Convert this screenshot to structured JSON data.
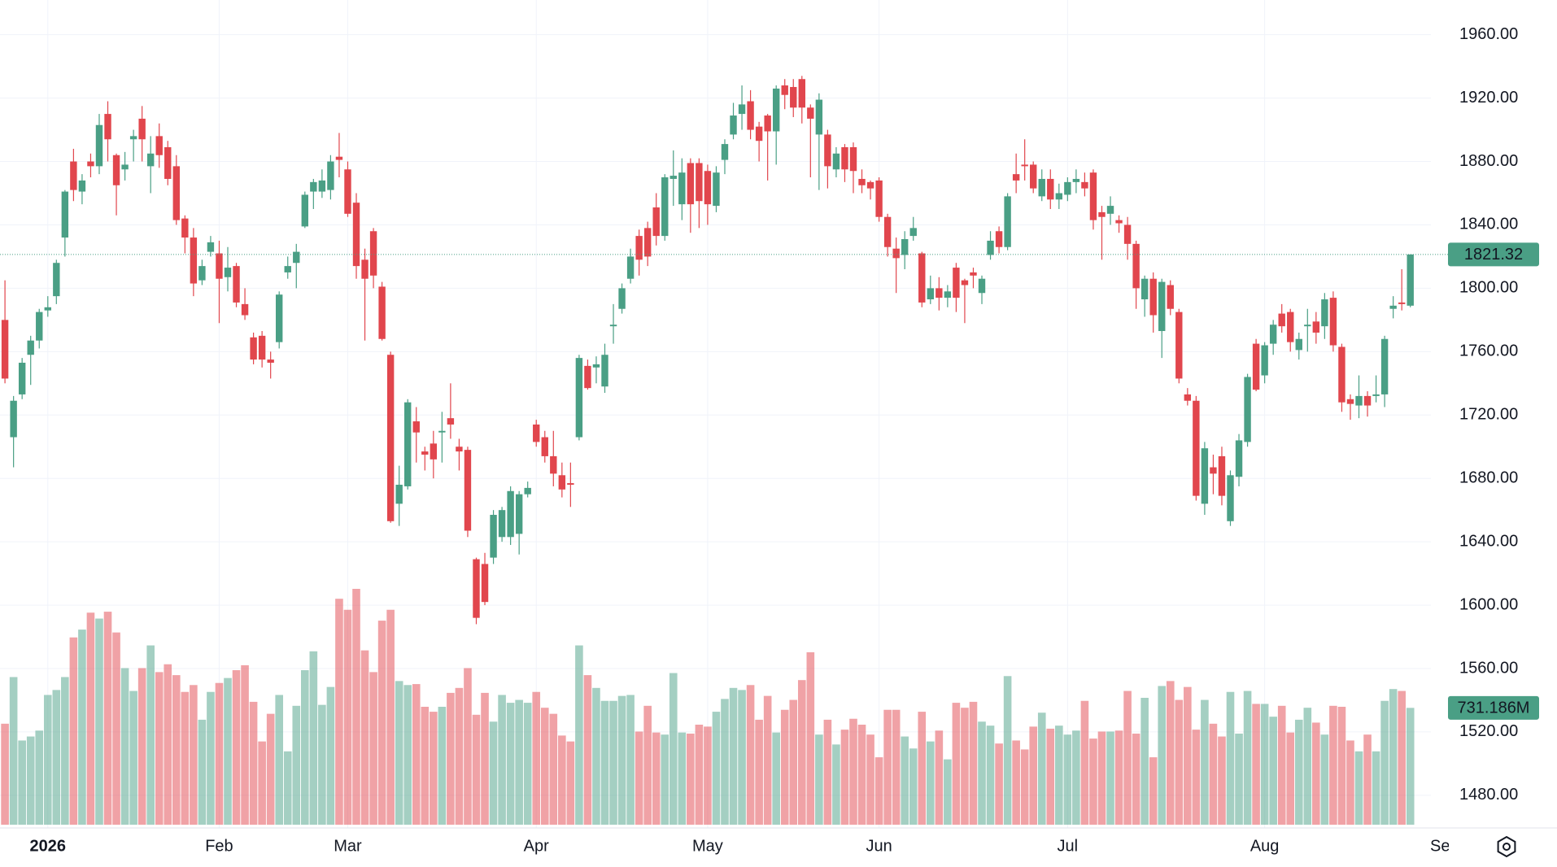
{
  "chart_data": {
    "type": "candlestick",
    "open": [
      1780,
      1706,
      1733,
      1758,
      1767,
      1786,
      1795,
      1832,
      1880,
      1861,
      1880,
      1877,
      1910,
      1884,
      1875,
      1894,
      1907,
      1877,
      1896,
      1889,
      1877,
      1844,
      1832,
      1805,
      1823,
      1822,
      1807,
      1814,
      1790,
      1769,
      1770,
      1755,
      1766,
      1810,
      1816,
      1839,
      1861,
      1861,
      1862,
      1883,
      1875,
      1854,
      1818,
      1836,
      1801,
      1758,
      1664,
      1675,
      1716,
      1697,
      1702,
      1709,
      1718,
      1700,
      1698,
      1629,
      1626,
      1630,
      1643,
      1643,
      1645,
      1670,
      1714,
      1706,
      1694,
      1682,
      1677,
      1706,
      1751,
      1750,
      1738,
      1776,
      1787,
      1806,
      1833,
      1838,
      1851,
      1833,
      1869,
      1853,
      1879,
      1879,
      1874,
      1852,
      1881,
      1897,
      1910,
      1918,
      1902,
      1909,
      1899,
      1928,
      1927,
      1932,
      1914,
      1897,
      1897,
      1875,
      1889,
      1889,
      1869,
      1867,
      1868,
      1845,
      1825,
      1821,
      1833,
      1822,
      1793,
      1800,
      1794,
      1813,
      1805,
      1810,
      1797,
      1821,
      1836,
      1826,
      1872,
      1878,
      1878,
      1858,
      1869,
      1856,
      1859,
      1867,
      1867,
      1873,
      1848,
      1847,
      1843,
      1840,
      1828,
      1793,
      1806,
      1773,
      1802,
      1785,
      1733,
      1729,
      1664,
      1687,
      1694,
      1653,
      1681,
      1703,
      1765,
      1745,
      1765,
      1784,
      1785,
      1761,
      1776,
      1779,
      1776,
      1794,
      1763,
      1730,
      1726,
      1732,
      1732,
      1733,
      1787,
      1791,
      1789
    ],
    "high": [
      1805,
      1732,
      1756,
      1770,
      1787,
      1795,
      1818,
      1862,
      1888,
      1872,
      1885,
      1910,
      1918,
      1885,
      1886,
      1900,
      1915,
      1896,
      1904,
      1893,
      1884,
      1846,
      1838,
      1818,
      1833,
      1830,
      1826,
      1816,
      1800,
      1772,
      1773,
      1760,
      1798,
      1820,
      1828,
      1861,
      1869,
      1875,
      1884,
      1898,
      1880,
      1860,
      1825,
      1838,
      1804,
      1760,
      1688,
      1730,
      1725,
      1700,
      1710,
      1722,
      1740,
      1705,
      1700,
      1630,
      1633,
      1660,
      1662,
      1675,
      1672,
      1678,
      1717,
      1710,
      1710,
      1690,
      1690,
      1758,
      1755,
      1757,
      1765,
      1790,
      1803,
      1825,
      1837,
      1842,
      1860,
      1872,
      1887,
      1882,
      1882,
      1882,
      1878,
      1877,
      1894,
      1917,
      1928,
      1925,
      1905,
      1910,
      1928,
      1932,
      1932,
      1934,
      1916,
      1923,
      1900,
      1889,
      1891,
      1892,
      1875,
      1868,
      1870,
      1847,
      1832,
      1836,
      1845,
      1823,
      1808,
      1807,
      1802,
      1816,
      1806,
      1813,
      1808,
      1836,
      1839,
      1860,
      1885,
      1894,
      1880,
      1875,
      1875,
      1866,
      1870,
      1875,
      1873,
      1875,
      1852,
      1858,
      1846,
      1845,
      1830,
      1808,
      1810,
      1806,
      1805,
      1787,
      1737,
      1732,
      1703,
      1695,
      1700,
      1685,
      1708,
      1746,
      1768,
      1766,
      1780,
      1790,
      1787,
      1772,
      1787,
      1785,
      1797,
      1798,
      1765,
      1733,
      1745,
      1735,
      1745,
      1770,
      1795,
      1812,
      1821.32
    ],
    "low": [
      1740,
      1687,
      1730,
      1739,
      1762,
      1782,
      1790,
      1820,
      1855,
      1853,
      1870,
      1872,
      1880,
      1846,
      1868,
      1880,
      1880,
      1860,
      1876,
      1865,
      1840,
      1822,
      1795,
      1802,
      1820,
      1778,
      1798,
      1788,
      1780,
      1752,
      1750,
      1743,
      1762,
      1806,
      1800,
      1838,
      1850,
      1857,
      1856,
      1870,
      1845,
      1806,
      1767,
      1800,
      1767,
      1652,
      1650,
      1673,
      1690,
      1685,
      1680,
      1690,
      1705,
      1685,
      1643,
      1588,
      1600,
      1626,
      1640,
      1638,
      1632,
      1668,
      1700,
      1690,
      1675,
      1668,
      1662,
      1704,
      1736,
      1740,
      1734,
      1765,
      1784,
      1803,
      1808,
      1814,
      1827,
      1830,
      1852,
      1843,
      1835,
      1838,
      1840,
      1848,
      1872,
      1894,
      1900,
      1894,
      1880,
      1868,
      1878,
      1913,
      1908,
      1904,
      1870,
      1862,
      1863,
      1870,
      1867,
      1860,
      1860,
      1856,
      1842,
      1820,
      1797,
      1812,
      1830,
      1788,
      1790,
      1786,
      1788,
      1785,
      1778,
      1800,
      1790,
      1818,
      1822,
      1824,
      1860,
      1868,
      1860,
      1855,
      1850,
      1850,
      1855,
      1860,
      1858,
      1837,
      1818,
      1840,
      1835,
      1818,
      1787,
      1782,
      1772,
      1756,
      1783,
      1740,
      1726,
      1666,
      1657,
      1670,
      1663,
      1650,
      1675,
      1700,
      1735,
      1740,
      1758,
      1772,
      1760,
      1755,
      1760,
      1765,
      1768,
      1760,
      1722,
      1717,
      1718,
      1719,
      1728,
      1725,
      1781,
      1786,
      1788
    ],
    "close": [
      1743,
      1729,
      1753,
      1767,
      1785,
      1788,
      1816,
      1861,
      1862,
      1868,
      1877,
      1903,
      1894,
      1865,
      1878,
      1896,
      1894,
      1885,
      1884,
      1869,
      1843,
      1832,
      1803,
      1814,
      1829,
      1806,
      1813,
      1791,
      1783,
      1755,
      1755,
      1753,
      1796,
      1814,
      1823,
      1859,
      1867,
      1868,
      1880,
      1881,
      1847,
      1814,
      1806,
      1808,
      1768,
      1653,
      1676,
      1728,
      1709,
      1695,
      1692,
      1710,
      1714,
      1697,
      1647,
      1592,
      1602,
      1657,
      1660,
      1672,
      1670,
      1674,
      1703,
      1694,
      1683,
      1673,
      1676,
      1756,
      1737,
      1752,
      1758,
      1777,
      1800,
      1820,
      1818,
      1820,
      1833,
      1870,
      1871,
      1873,
      1853,
      1855,
      1853,
      1873,
      1891,
      1909,
      1916,
      1900,
      1893,
      1899,
      1926,
      1922,
      1914,
      1914,
      1907,
      1919,
      1877,
      1885,
      1875,
      1874,
      1865,
      1863,
      1845,
      1826,
      1819,
      1831,
      1838,
      1791,
      1800,
      1794,
      1798,
      1794,
      1802,
      1808,
      1806,
      1830,
      1826,
      1858,
      1868,
      1877,
      1863,
      1869,
      1856,
      1860,
      1867,
      1869,
      1863,
      1843,
      1845,
      1852,
      1841,
      1828,
      1800,
      1806,
      1783,
      1804,
      1787,
      1743,
      1729,
      1669,
      1699,
      1683,
      1669,
      1682,
      1704,
      1744,
      1736,
      1764,
      1777,
      1776,
      1766,
      1768,
      1777,
      1772,
      1793,
      1764,
      1728,
      1727,
      1732,
      1726,
      1733,
      1768,
      1789,
      1790,
      1821.32
    ],
    "volume": {
      "values": [
        632,
        924,
        527,
        552,
        589,
        812,
        843,
        924,
        1172,
        1221,
        1327,
        1290,
        1333,
        1203,
        980,
        837,
        980,
        1122,
        955,
        1004,
        936,
        831,
        874,
        657,
        831,
        887,
        918,
        967,
        998,
        769,
        521,
        694,
        812,
        459,
        744,
        967,
        1085,
        750,
        862,
        1414,
        1345,
        1476,
        1091,
        955,
        1277,
        1345,
        899,
        874,
        880,
        738,
        707,
        738,
        825,
        856,
        980,
        688,
        825,
        645,
        812,
        763,
        781,
        763,
        831,
        732,
        694,
        558,
        521,
        1122,
        936,
        856,
        775,
        775,
        806,
        812,
        583,
        744,
        577,
        564,
        949,
        577,
        570,
        626,
        614,
        707,
        787,
        856,
        843,
        874,
        657,
        806,
        577,
        719,
        781,
        905,
        1079,
        564,
        657,
        502,
        595,
        663,
        626,
        564,
        422,
        719,
        719,
        552,
        477,
        707,
        521,
        589,
        409,
        763,
        732,
        769,
        645,
        620,
        508,
        930,
        527,
        471,
        614,
        701,
        601,
        620,
        564,
        589,
        775,
        539,
        583,
        583,
        589,
        837,
        570,
        794,
        422,
        868,
        899,
        781,
        862,
        595,
        781,
        632,
        552,
        831,
        570,
        837,
        756,
        756,
        676,
        744,
        577,
        657,
        732,
        639,
        564,
        744,
        738,
        527,
        459,
        564,
        459,
        775,
        849,
        837,
        731.186
      ],
      "last_label": "731.186M"
    },
    "up_color": "#4a9f85",
    "down_color": "#e1464d",
    "ylim": [
      1459.4,
      1981.9
    ],
    "yticks": [
      {
        "value": 1960,
        "label": "1960.00"
      },
      {
        "value": 1920,
        "label": "1920.00"
      },
      {
        "value": 1880,
        "label": "1880.00"
      },
      {
        "value": 1840,
        "label": "1840.00"
      },
      {
        "value": 1800,
        "label": "1800.00"
      },
      {
        "value": 1760,
        "label": "1760.00"
      },
      {
        "value": 1720,
        "label": "1720.00"
      },
      {
        "value": 1680,
        "label": "1680.00"
      },
      {
        "value": 1640,
        "label": "1640.00"
      },
      {
        "value": 1600,
        "label": "1600.00"
      },
      {
        "value": 1560,
        "label": "1560.00"
      },
      {
        "value": 1520,
        "label": "1520.00"
      },
      {
        "value": 1480,
        "label": "1480.00"
      }
    ],
    "xlim": [
      -0.58,
      166.4
    ],
    "xticks": [
      {
        "value": 5,
        "label": "2026"
      },
      {
        "value": 25,
        "label": "Feb"
      },
      {
        "value": 40,
        "label": "Mar"
      },
      {
        "value": 62,
        "label": "Apr"
      },
      {
        "value": 82,
        "label": "May"
      },
      {
        "value": 102,
        "label": "Jun"
      },
      {
        "value": 124,
        "label": "Jul"
      },
      {
        "value": 147,
        "label": "Aug"
      },
      {
        "value": 168,
        "label": "Sep"
      }
    ],
    "grid": true
  }
}
